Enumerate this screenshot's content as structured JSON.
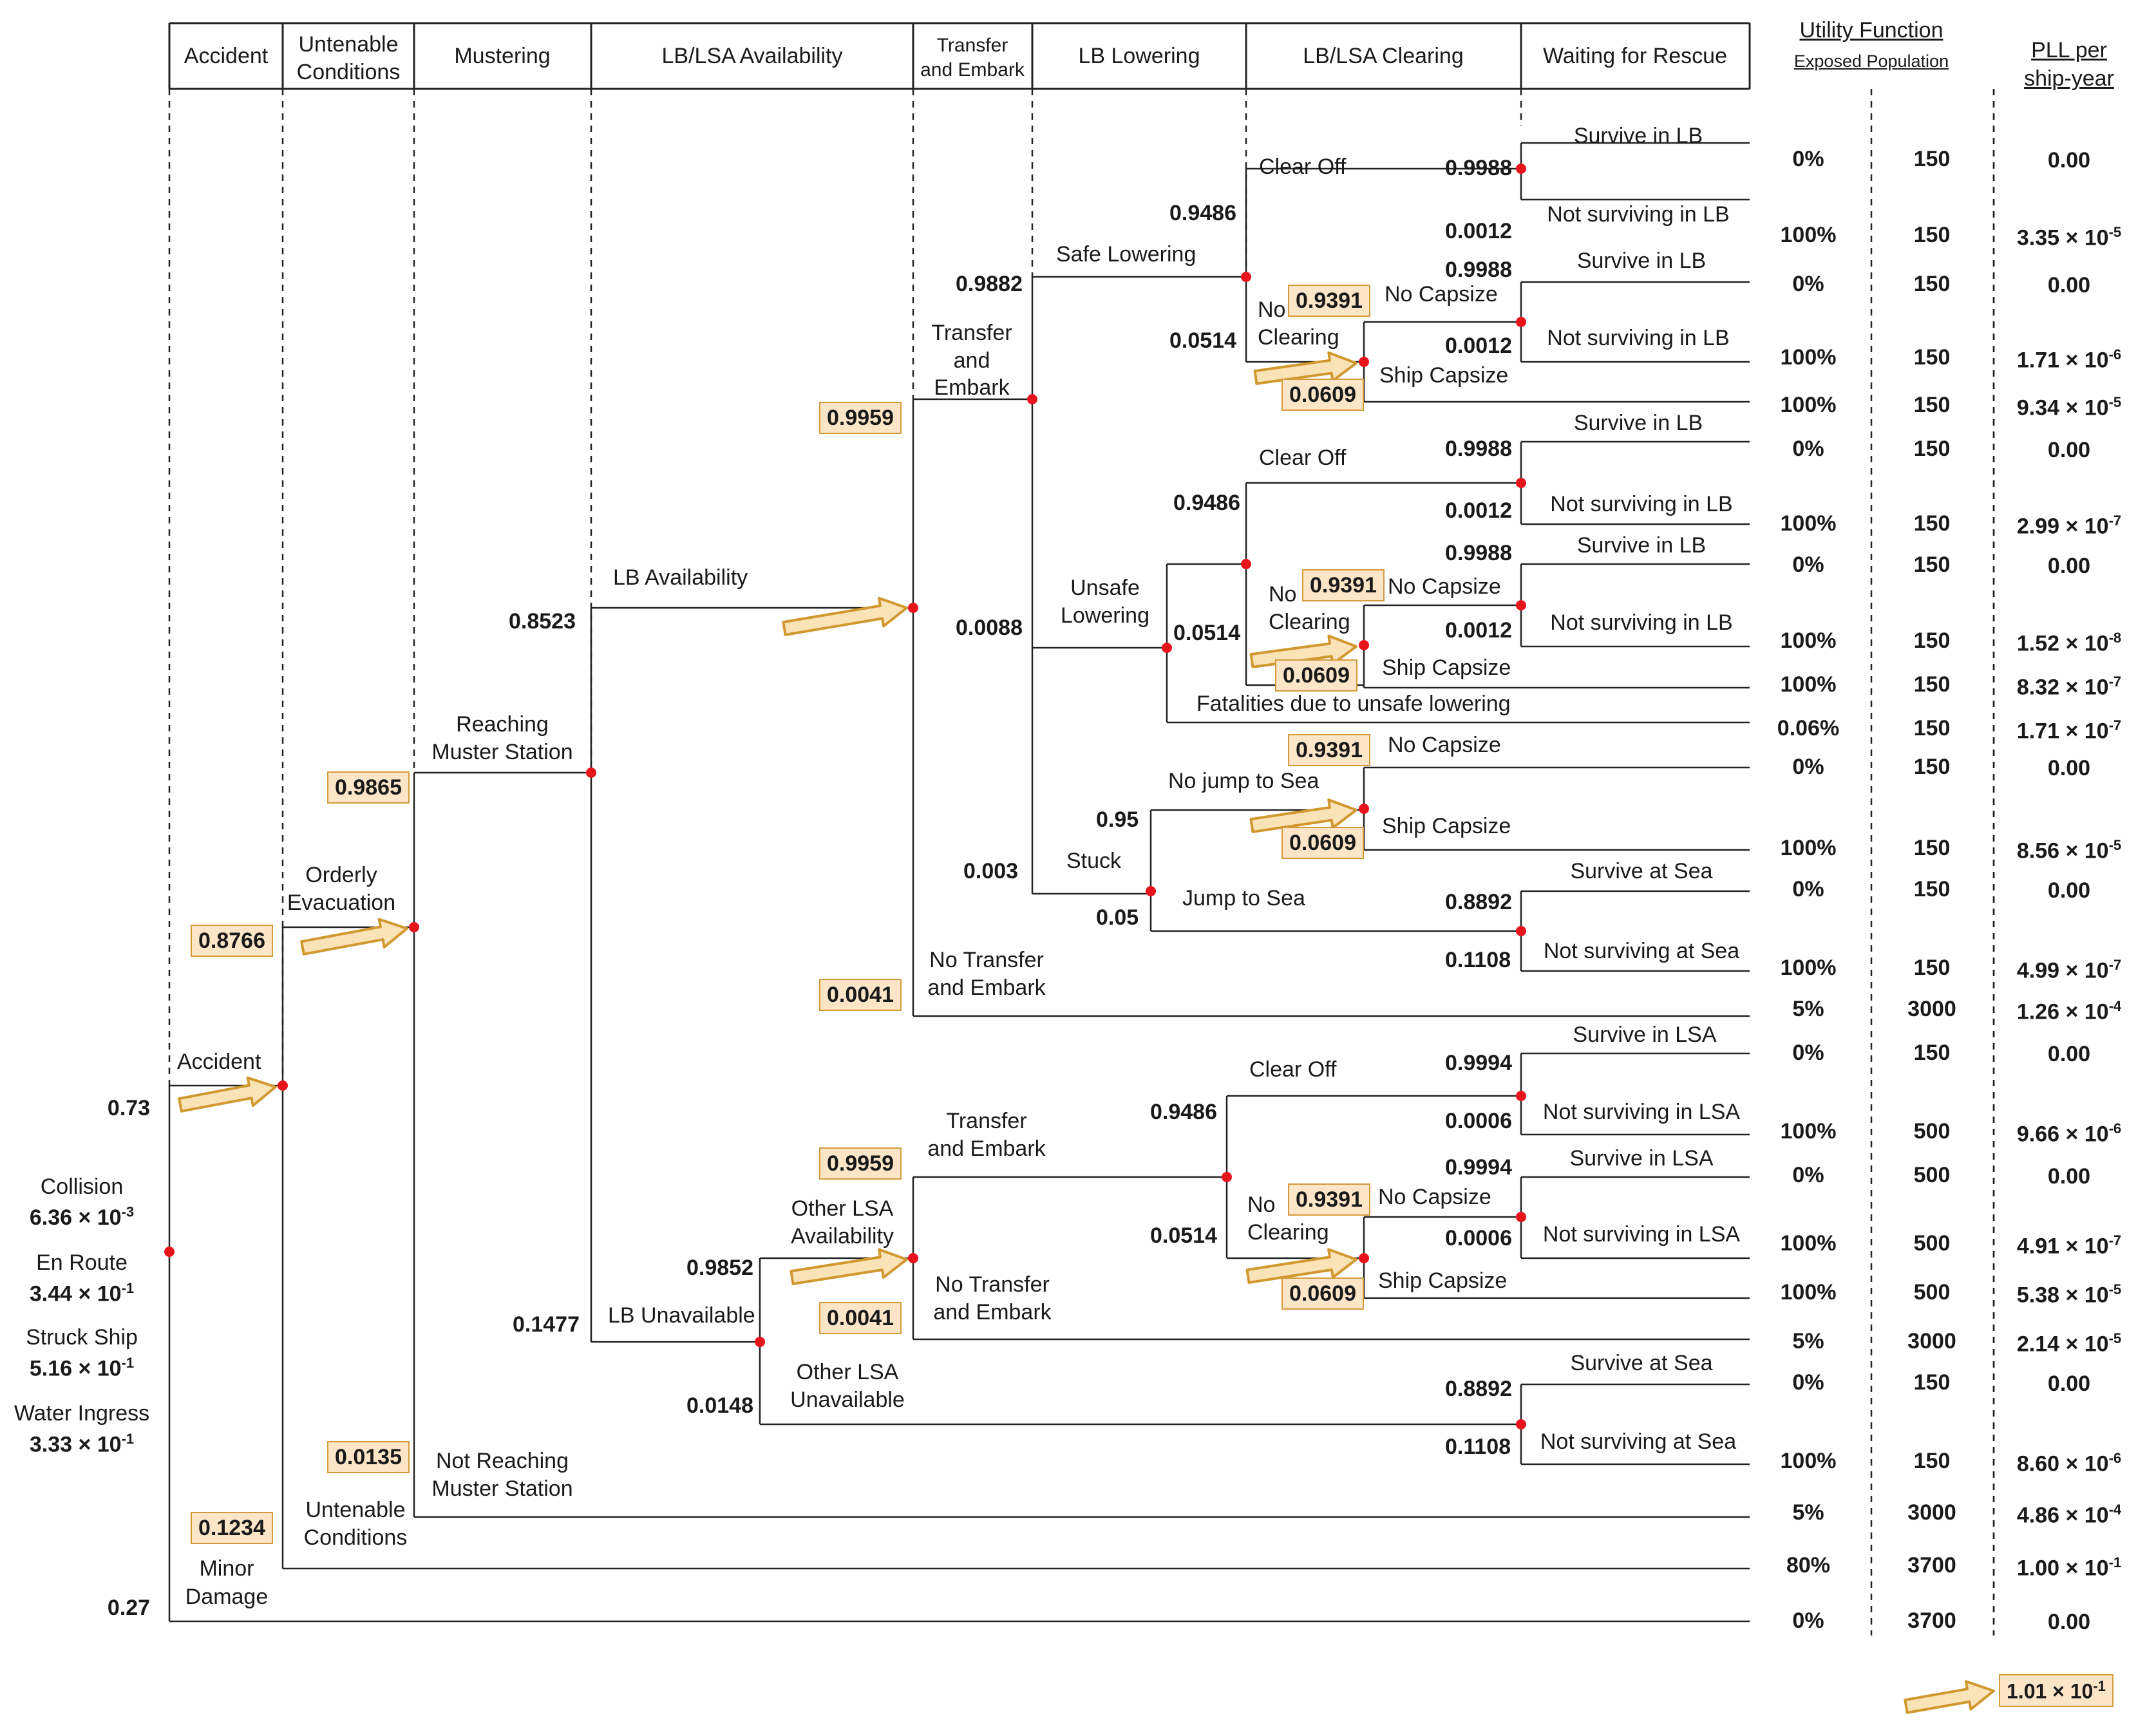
{
  "header": {
    "stages": [
      "Accident",
      "Untenable\nConditions",
      "Mustering",
      "LB/LSA Availability",
      "Transfer\nand Embark",
      "LB Lowering",
      "LB/LSA Clearing",
      "Waiting for Rescue"
    ],
    "utility_function": "Utility Function",
    "exposed_population": "Exposed Population",
    "pll_per_ship_year": "PLL per\nship-year"
  },
  "initiators": {
    "accident_prob": "0.73",
    "minor_prob": "0.27",
    "collision": "Collision",
    "collision_val": "6.36 × 10-3",
    "en_route": "En Route",
    "en_route_val": "3.44 × 10-1",
    "struck_ship": "Struck Ship",
    "struck_ship_val": "5.16 × 10-1",
    "water_ingress": "Water Ingress",
    "water_ingress_val": "3.33 × 10-1"
  },
  "branch_labels": {
    "accident": "Accident",
    "minor_damage": "Minor\nDamage",
    "orderly_evacuation": "Orderly\nEvacuation",
    "untenable_conditions": "Untenable\nConditions",
    "reaching_muster": "Reaching\nMuster Station",
    "not_reaching_muster": "Not Reaching\nMuster Station",
    "lb_availability": "LB Availability",
    "lb_unavailable": "LB Unavailable",
    "other_lsa_availability": "Other LSA\nAvailability",
    "other_lsa_unavailable": "Other LSA\nUnavailable",
    "transfer_embark": "Transfer\nand\nEmbark",
    "transfer_embark_lsa": "Transfer\nand Embark",
    "no_transfer_embark": "No Transfer\nand Embark",
    "safe_lowering": "Safe Lowering",
    "unsafe_lowering": "Unsafe\nLowering",
    "stuck": "Stuck",
    "clear_off": "Clear Off",
    "no_clearing": "No\nClearing",
    "no_capsize": "No Capsize",
    "ship_capsize": "Ship Capsize",
    "no_jump": "No jump to Sea",
    "jump": "Jump to Sea",
    "fatalities": "Fatalities due to unsafe lowering",
    "survive_lb": "Survive in LB",
    "not_surviving_lb": "Not surviving in LB",
    "survive_lsa": "Survive in LSA",
    "not_surviving_lsa": "Not surviving in LSA",
    "survive_sea": "Survive at Sea",
    "not_surviving_sea": "Not surviving at Sea"
  },
  "branch_probs": {
    "p_8766": "0.8766",
    "p_1234": "0.1234",
    "p_9865": "0.9865",
    "p_0135": "0.0135",
    "p_8523": "0.8523",
    "p_1477": "0.1477",
    "p_9959": "0.9959",
    "p_0041": "0.0041",
    "p_9882": "0.9882",
    "p_0088": "0.0088",
    "p_003": "0.003",
    "p_9486": "0.9486",
    "p_0514": "0.0514",
    "p_9988": "0.9988",
    "p_0012": "0.0012",
    "p_9391": "0.9391",
    "p_0609": "0.0609",
    "p_095": "0.95",
    "p_005": "0.05",
    "p_8892": "0.8892",
    "p_1108": "0.1108",
    "p_9852": "0.9852",
    "p_0148": "0.0148",
    "p_9994": "0.9994",
    "p_0006": "0.0006"
  },
  "outcomes": [
    {
      "u": "0%",
      "pop": "150",
      "m": "0.00",
      "e": ""
    },
    {
      "u": "100%",
      "pop": "150",
      "m": "3.35 × 10",
      "e": "-5"
    },
    {
      "u": "0%",
      "pop": "150",
      "m": "0.00",
      "e": ""
    },
    {
      "u": "100%",
      "pop": "150",
      "m": "1.71 × 10",
      "e": "-6"
    },
    {
      "u": "100%",
      "pop": "150",
      "m": "9.34 × 10",
      "e": "-5"
    },
    {
      "u": "0%",
      "pop": "150",
      "m": "0.00",
      "e": ""
    },
    {
      "u": "100%",
      "pop": "150",
      "m": "2.99 × 10",
      "e": "-7"
    },
    {
      "u": "0%",
      "pop": "150",
      "m": "0.00",
      "e": ""
    },
    {
      "u": "100%",
      "pop": "150",
      "m": "1.52 × 10",
      "e": "-8"
    },
    {
      "u": "100%",
      "pop": "150",
      "m": "8.32 × 10",
      "e": "-7"
    },
    {
      "u": "0.06%",
      "pop": "150",
      "m": "1.71 × 10",
      "e": "-7"
    },
    {
      "u": "0%",
      "pop": "150",
      "m": "0.00",
      "e": ""
    },
    {
      "u": "100%",
      "pop": "150",
      "m": "8.56 × 10",
      "e": "-5"
    },
    {
      "u": "0%",
      "pop": "150",
      "m": "0.00",
      "e": ""
    },
    {
      "u": "100%",
      "pop": "150",
      "m": "4.99 × 10",
      "e": "-7"
    },
    {
      "u": "5%",
      "pop": "3000",
      "m": "1.26 × 10",
      "e": "-4"
    },
    {
      "u": "0%",
      "pop": "150",
      "m": "0.00",
      "e": ""
    },
    {
      "u": "100%",
      "pop": "500",
      "m": "9.66 × 10",
      "e": "-6"
    },
    {
      "u": "0%",
      "pop": "500",
      "m": "0.00",
      "e": ""
    },
    {
      "u": "100%",
      "pop": "500",
      "m": "4.91 × 10",
      "e": "-7"
    },
    {
      "u": "100%",
      "pop": "500",
      "m": "5.38 × 10",
      "e": "-5"
    },
    {
      "u": "5%",
      "pop": "3000",
      "m": "2.14 × 10",
      "e": "-5"
    },
    {
      "u": "0%",
      "pop": "150",
      "m": "0.00",
      "e": ""
    },
    {
      "u": "100%",
      "pop": "150",
      "m": "8.60 × 10",
      "e": "-6"
    },
    {
      "u": "5%",
      "pop": "3000",
      "m": "4.86 × 10",
      "e": "-4"
    },
    {
      "u": "80%",
      "pop": "3700",
      "m": "1.00 × 10",
      "e": "-1"
    },
    {
      "u": "0%",
      "pop": "3700",
      "m": "0.00",
      "e": ""
    }
  ],
  "total": {
    "m": "1.01 × 10",
    "e": "-1"
  },
  "colors": {
    "line": "#222222",
    "dashed": "#222222",
    "node": "#e8141c",
    "box_fill": "#fde5c8",
    "box_border": "#d69a3c",
    "arrow_fill": "#fbe3b8",
    "arrow_stroke": "#d1982f"
  }
}
